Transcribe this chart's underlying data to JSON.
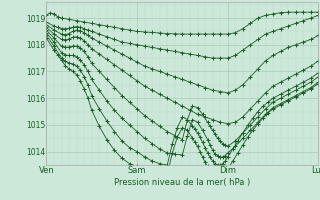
{
  "title": "Pression niveau de la mer( hPa )",
  "bg_color": "#cce8d8",
  "line_color": "#1a5c28",
  "ylim": [
    1013.5,
    1019.6
  ],
  "yticks": [
    1014,
    1015,
    1016,
    1017,
    1018,
    1019
  ],
  "xtick_labels": [
    "Ven",
    "Sam",
    "Dim",
    "Lun"
  ],
  "xtick_positions": [
    0,
    72,
    144,
    216
  ],
  "x_max": 216,
  "grid_major_color": "#a8ccb8",
  "grid_minor_color": "#bcd8c8",
  "series": [
    {
      "x": [
        0,
        3,
        6,
        9,
        12,
        18,
        24,
        30,
        36,
        42,
        48,
        54,
        60,
        66,
        72,
        78,
        84,
        90,
        96,
        102,
        108,
        114,
        120,
        126,
        132,
        138,
        144,
        150,
        156,
        162,
        168,
        174,
        180,
        186,
        192,
        198,
        204,
        210,
        216
      ],
      "y": [
        1019.1,
        1019.2,
        1019.15,
        1019.05,
        1019.0,
        1018.95,
        1018.9,
        1018.85,
        1018.8,
        1018.75,
        1018.7,
        1018.65,
        1018.6,
        1018.55,
        1018.5,
        1018.48,
        1018.46,
        1018.44,
        1018.42,
        1018.41,
        1018.4,
        1018.4,
        1018.4,
        1018.4,
        1018.4,
        1018.4,
        1018.4,
        1018.45,
        1018.6,
        1018.8,
        1019.0,
        1019.1,
        1019.15,
        1019.2,
        1019.22,
        1019.22,
        1019.22,
        1019.22,
        1019.22
      ]
    },
    {
      "x": [
        0,
        6,
        9,
        12,
        15,
        18,
        21,
        24,
        27,
        30,
        33,
        36,
        42,
        48,
        54,
        60,
        66,
        72,
        78,
        84,
        90,
        96,
        102,
        108,
        114,
        120,
        126,
        132,
        138,
        144,
        150,
        156,
        162,
        168,
        174,
        180,
        186,
        192,
        198,
        204,
        210,
        216
      ],
      "y": [
        1018.85,
        1018.7,
        1018.65,
        1018.6,
        1018.6,
        1018.62,
        1018.65,
        1018.68,
        1018.65,
        1018.6,
        1018.55,
        1018.5,
        1018.4,
        1018.3,
        1018.2,
        1018.1,
        1018.05,
        1018.0,
        1017.95,
        1017.9,
        1017.85,
        1017.8,
        1017.75,
        1017.7,
        1017.65,
        1017.6,
        1017.55,
        1017.5,
        1017.5,
        1017.5,
        1017.6,
        1017.8,
        1018.0,
        1018.2,
        1018.4,
        1018.5,
        1018.6,
        1018.7,
        1018.8,
        1018.9,
        1019.0,
        1019.1
      ]
    },
    {
      "x": [
        0,
        6,
        12,
        15,
        18,
        21,
        24,
        27,
        30,
        33,
        36,
        42,
        48,
        54,
        60,
        66,
        72,
        78,
        84,
        90,
        96,
        102,
        108,
        114,
        120,
        126,
        132,
        138,
        144,
        150,
        156,
        162,
        168,
        174,
        180,
        186,
        192,
        198,
        204,
        210,
        216
      ],
      "y": [
        1018.75,
        1018.55,
        1018.4,
        1018.38,
        1018.42,
        1018.5,
        1018.55,
        1018.52,
        1018.45,
        1018.35,
        1018.25,
        1018.1,
        1017.95,
        1017.8,
        1017.65,
        1017.5,
        1017.35,
        1017.2,
        1017.1,
        1017.0,
        1016.9,
        1016.8,
        1016.7,
        1016.6,
        1016.5,
        1016.4,
        1016.3,
        1016.25,
        1016.2,
        1016.3,
        1016.5,
        1016.8,
        1017.1,
        1017.4,
        1017.6,
        1017.75,
        1017.9,
        1018.0,
        1018.1,
        1018.2,
        1018.35
      ]
    },
    {
      "x": [
        0,
        6,
        12,
        15,
        18,
        21,
        24,
        27,
        30,
        33,
        36,
        42,
        48,
        54,
        60,
        66,
        72,
        78,
        84,
        90,
        96,
        102,
        108,
        114,
        120,
        126,
        132,
        138,
        144,
        150,
        156,
        162,
        168,
        174,
        180,
        186,
        192,
        198,
        204,
        210,
        216
      ],
      "y": [
        1018.65,
        1018.4,
        1018.2,
        1018.18,
        1018.22,
        1018.28,
        1018.3,
        1018.25,
        1018.15,
        1018.0,
        1017.85,
        1017.65,
        1017.45,
        1017.25,
        1017.05,
        1016.85,
        1016.65,
        1016.45,
        1016.3,
        1016.15,
        1016.0,
        1015.85,
        1015.7,
        1015.55,
        1015.4,
        1015.3,
        1015.2,
        1015.1,
        1015.05,
        1015.1,
        1015.3,
        1015.6,
        1015.9,
        1016.2,
        1016.45,
        1016.6,
        1016.75,
        1016.9,
        1017.05,
        1017.2,
        1017.4
      ]
    },
    {
      "x": [
        0,
        6,
        12,
        15,
        18,
        21,
        24,
        27,
        30,
        33,
        36,
        42,
        48,
        54,
        60,
        66,
        72,
        78,
        84,
        90,
        96,
        102,
        108,
        112,
        116,
        120,
        124,
        128,
        130,
        132,
        134,
        136,
        138,
        140,
        142,
        144,
        150,
        156,
        162,
        168,
        174,
        180,
        186,
        192,
        198,
        204,
        210,
        216
      ],
      "y": [
        1018.55,
        1018.25,
        1017.95,
        1017.9,
        1017.92,
        1017.95,
        1017.95,
        1017.88,
        1017.75,
        1017.55,
        1017.3,
        1017.0,
        1016.7,
        1016.4,
        1016.1,
        1015.85,
        1015.6,
        1015.35,
        1015.15,
        1014.95,
        1014.75,
        1014.6,
        1014.45,
        1015.2,
        1015.7,
        1015.65,
        1015.4,
        1015.1,
        1014.95,
        1014.8,
        1014.65,
        1014.5,
        1014.4,
        1014.3,
        1014.25,
        1014.2,
        1014.4,
        1014.7,
        1015.0,
        1015.3,
        1015.6,
        1015.85,
        1016.0,
        1016.15,
        1016.3,
        1016.45,
        1016.6,
        1016.8
      ]
    },
    {
      "x": [
        0,
        6,
        12,
        15,
        18,
        21,
        24,
        27,
        30,
        33,
        36,
        42,
        48,
        54,
        60,
        66,
        72,
        78,
        84,
        90,
        96,
        102,
        108,
        112,
        116,
        120,
        124,
        128,
        130,
        132,
        134,
        136,
        138,
        140,
        142,
        144,
        150,
        156,
        162,
        168,
        174,
        180,
        186,
        192,
        198,
        204,
        210,
        216
      ],
      "y": [
        1018.45,
        1018.1,
        1017.7,
        1017.62,
        1017.6,
        1017.6,
        1017.55,
        1017.42,
        1017.25,
        1017.0,
        1016.7,
        1016.3,
        1015.9,
        1015.55,
        1015.25,
        1015.0,
        1014.75,
        1014.5,
        1014.3,
        1014.1,
        1013.95,
        1013.9,
        1013.88,
        1014.6,
        1015.2,
        1015.1,
        1014.8,
        1014.45,
        1014.25,
        1014.05,
        1013.9,
        1013.85,
        1013.8,
        1013.8,
        1013.85,
        1013.95,
        1014.2,
        1014.5,
        1014.8,
        1015.1,
        1015.4,
        1015.65,
        1015.8,
        1015.95,
        1016.1,
        1016.25,
        1016.4,
        1016.6
      ]
    },
    {
      "x": [
        0,
        6,
        12,
        15,
        18,
        21,
        24,
        27,
        30,
        33,
        36,
        42,
        48,
        54,
        60,
        66,
        72,
        78,
        84,
        90,
        96,
        100,
        104,
        108,
        112,
        116,
        118,
        120,
        122,
        124,
        126,
        128,
        130,
        132,
        134,
        136,
        138,
        140,
        142,
        144,
        148,
        152,
        156,
        160,
        164,
        168,
        172,
        176,
        180,
        186,
        192,
        198,
        204,
        210,
        216
      ],
      "y": [
        1018.35,
        1017.95,
        1017.5,
        1017.38,
        1017.32,
        1017.28,
        1017.2,
        1017.05,
        1016.8,
        1016.5,
        1016.1,
        1015.6,
        1015.15,
        1014.75,
        1014.4,
        1014.15,
        1014.0,
        1013.8,
        1013.65,
        1013.55,
        1013.5,
        1014.3,
        1014.9,
        1015.3,
        1015.2,
        1014.95,
        1014.85,
        1014.7,
        1014.55,
        1014.35,
        1014.15,
        1013.95,
        1013.8,
        1013.65,
        1013.55,
        1013.5,
        1013.5,
        1013.55,
        1013.65,
        1013.8,
        1014.1,
        1014.4,
        1014.7,
        1015.0,
        1015.25,
        1015.5,
        1015.7,
        1015.85,
        1016.0,
        1016.15,
        1016.3,
        1016.45,
        1016.6,
        1016.75,
        1016.95
      ]
    },
    {
      "x": [
        0,
        6,
        9,
        12,
        15,
        18,
        21,
        24,
        27,
        30,
        33,
        36,
        42,
        48,
        54,
        60,
        66,
        72,
        78,
        84,
        90,
        96,
        100,
        104,
        108,
        112,
        116,
        118,
        120,
        122,
        124,
        126,
        128,
        130,
        132,
        134,
        136,
        138,
        140,
        142,
        144,
        148,
        152,
        156,
        160,
        164,
        168,
        172,
        176,
        180,
        186,
        192,
        198,
        204,
        210,
        216
      ],
      "y": [
        1018.25,
        1017.8,
        1017.62,
        1017.42,
        1017.22,
        1017.1,
        1017.0,
        1016.88,
        1016.65,
        1016.35,
        1016.0,
        1015.55,
        1014.95,
        1014.45,
        1014.05,
        1013.75,
        1013.55,
        1013.45,
        1013.3,
        1013.2,
        1013.15,
        1013.15,
        1013.95,
        1014.55,
        1014.9,
        1014.8,
        1014.5,
        1014.35,
        1014.2,
        1014.0,
        1013.8,
        1013.6,
        1013.45,
        1013.3,
        1013.2,
        1013.15,
        1013.1,
        1013.1,
        1013.15,
        1013.2,
        1013.35,
        1013.65,
        1013.95,
        1014.25,
        1014.55,
        1014.8,
        1015.05,
        1015.25,
        1015.45,
        1015.6,
        1015.75,
        1015.9,
        1016.05,
        1016.2,
        1016.35,
        1016.55
      ]
    }
  ]
}
